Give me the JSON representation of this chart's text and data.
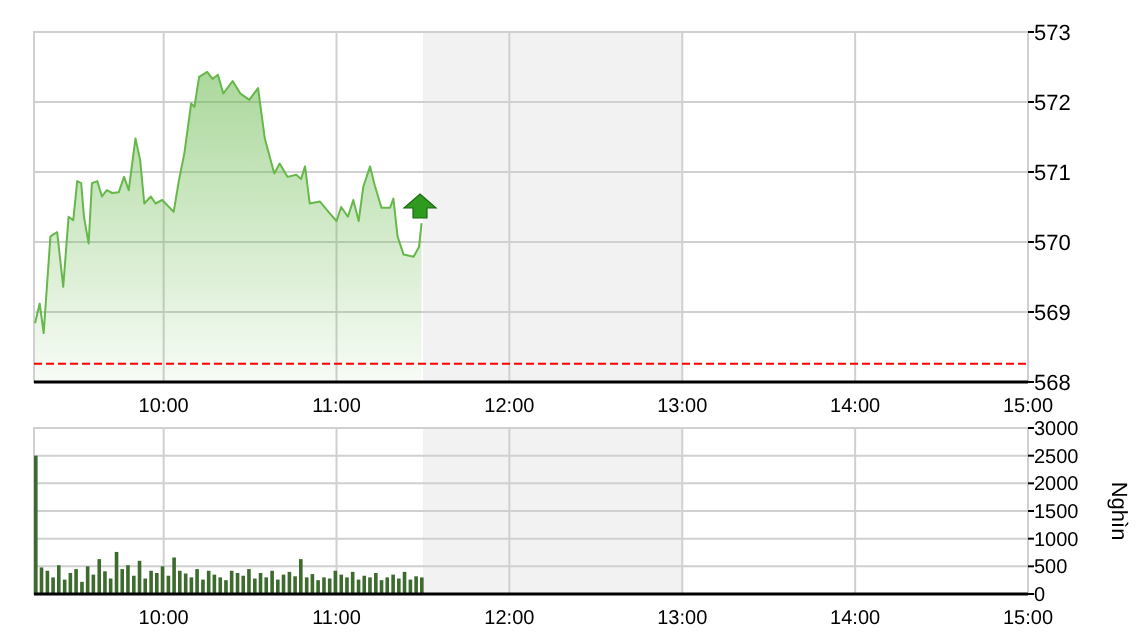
{
  "chart_data": [
    {
      "type": "area",
      "xlim": [
        9.25,
        15
      ],
      "xticks": [
        {
          "value": 10,
          "label": "10:00"
        },
        {
          "value": 11,
          "label": "11:00"
        },
        {
          "value": 12,
          "label": "12:00"
        },
        {
          "value": 13,
          "label": "13:00"
        },
        {
          "value": 14,
          "label": "14:00"
        },
        {
          "value": 15,
          "label": "15:00"
        }
      ],
      "ylim": [
        568,
        573
      ],
      "yticks": [
        568,
        569,
        570,
        571,
        572,
        573
      ],
      "grid": true,
      "bands": [
        {
          "axis": "x",
          "from": 11.5,
          "to": 13,
          "color": "#f2f2f2"
        }
      ],
      "ref_lines": [
        {
          "axis": "y",
          "value": 568.26,
          "color": "#ff0000",
          "line_style": "dashed"
        }
      ],
      "series": [
        {
          "color": "#66b84a",
          "x": [
            9.256,
            9.283,
            9.306,
            9.345,
            9.384,
            9.419,
            9.45,
            9.477,
            9.5,
            9.523,
            9.539,
            9.566,
            9.585,
            9.616,
            9.643,
            9.671,
            9.702,
            9.74,
            9.771,
            9.798,
            9.837,
            9.864,
            9.888,
            9.926,
            9.953,
            9.992,
            10.058,
            10.089,
            10.12,
            10.159,
            10.178,
            10.205,
            10.252,
            10.283,
            10.314,
            10.345,
            10.399,
            10.444,
            10.496,
            10.546,
            10.585,
            10.64,
            10.671,
            10.717,
            10.767,
            10.795,
            10.818,
            10.845,
            10.903,
            10.961,
            11.0,
            11.027,
            11.066,
            11.097,
            11.128,
            11.155,
            11.194,
            11.221,
            11.26,
            11.31,
            11.329,
            11.353,
            11.388,
            11.446,
            11.477,
            11.492
          ],
          "values": [
            568.84,
            569.12,
            568.7,
            570.08,
            570.14,
            569.36,
            570.36,
            570.31,
            570.87,
            570.84,
            570.36,
            569.98,
            570.84,
            570.87,
            570.65,
            570.74,
            570.7,
            570.71,
            570.93,
            570.74,
            571.48,
            571.17,
            570.55,
            570.65,
            570.55,
            570.6,
            570.43,
            570.89,
            571.27,
            571.98,
            571.93,
            572.36,
            572.43,
            572.33,
            572.39,
            572.12,
            572.3,
            572.12,
            572.03,
            572.2,
            571.48,
            570.98,
            571.12,
            570.93,
            570.96,
            570.9,
            571.08,
            570.55,
            570.58,
            570.41,
            570.3,
            570.5,
            570.36,
            570.6,
            570.3,
            570.79,
            571.08,
            570.81,
            570.49,
            570.49,
            570.62,
            570.08,
            569.82,
            569.79,
            569.93,
            570.27
          ]
        }
      ]
    },
    {
      "type": "bar",
      "ylabel": "Nghìn",
      "xlim": [
        9.25,
        15
      ],
      "xticks": [
        {
          "value": 10,
          "label": "10:00"
        },
        {
          "value": 11,
          "label": "11:00"
        },
        {
          "value": 12,
          "label": "12:00"
        },
        {
          "value": 13,
          "label": "13:00"
        },
        {
          "value": 14,
          "label": "14:00"
        },
        {
          "value": 15,
          "label": "15:00"
        }
      ],
      "ylim": [
        0,
        3000
      ],
      "yticks": [
        0,
        500,
        1000,
        1500,
        2000,
        2500,
        3000
      ],
      "grid": true,
      "bands": [
        {
          "axis": "x",
          "from": 11.5,
          "to": 13,
          "color": "#f2f2f2"
        }
      ],
      "series": [
        {
          "color": "#3d6b2e",
          "x": [
            9.25,
            9.283,
            9.317,
            9.35,
            9.383,
            9.417,
            9.45,
            9.483,
            9.517,
            9.55,
            9.583,
            9.617,
            9.65,
            9.683,
            9.717,
            9.75,
            9.783,
            9.817,
            9.85,
            9.883,
            9.917,
            9.95,
            9.983,
            10.017,
            10.05,
            10.083,
            10.117,
            10.15,
            10.183,
            10.217,
            10.25,
            10.283,
            10.317,
            10.35,
            10.383,
            10.417,
            10.45,
            10.483,
            10.517,
            10.55,
            10.583,
            10.617,
            10.65,
            10.683,
            10.717,
            10.75,
            10.783,
            10.817,
            10.85,
            10.883,
            10.917,
            10.95,
            10.983,
            11.017,
            11.05,
            11.083,
            11.117,
            11.15,
            11.183,
            11.217,
            11.25,
            11.283,
            11.317,
            11.35,
            11.383,
            11.417,
            11.45,
            11.483
          ],
          "values": [
            2500,
            480,
            420,
            300,
            520,
            260,
            380,
            450,
            220,
            500,
            350,
            630,
            410,
            280,
            760,
            450,
            520,
            330,
            600,
            280,
            420,
            380,
            500,
            330,
            660,
            420,
            370,
            300,
            450,
            260,
            420,
            350,
            300,
            250,
            420,
            380,
            330,
            450,
            280,
            380,
            300,
            420,
            260,
            350,
            400,
            320,
            630,
            300,
            360,
            250,
            300,
            280,
            420,
            350,
            300,
            400,
            260,
            330,
            300,
            380,
            250,
            300,
            350,
            280,
            400,
            260,
            320,
            300
          ]
        }
      ]
    }
  ]
}
